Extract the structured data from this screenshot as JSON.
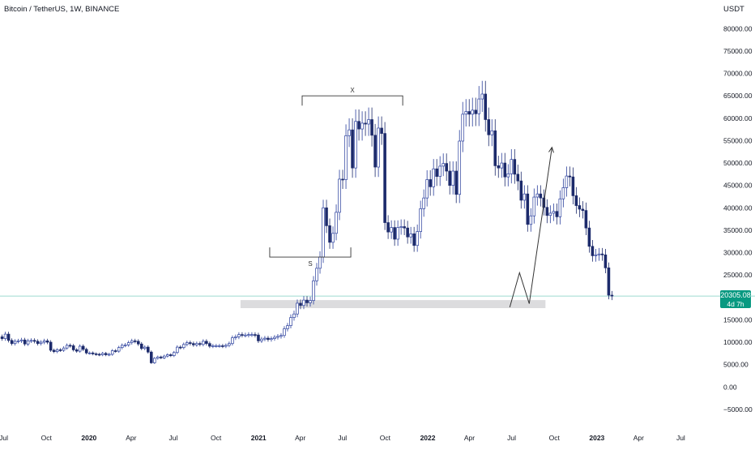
{
  "header": {
    "title": "Bitcoin / TetherUS, 1W, BINANCE",
    "unit": "USDT"
  },
  "price_tag": {
    "price": "20305.08",
    "countdown": "4d 7h"
  },
  "colors": {
    "up": "#2a3f9d",
    "down": "#1c2a6b",
    "background": "#ffffff",
    "price_line": "#7fcfc0",
    "support_zone": "#dcdcde",
    "annotation": "#333333",
    "axis_text": "#131722"
  },
  "chart_data": {
    "type": "candlestick",
    "title": "Bitcoin / TetherUS, 1W, BINANCE",
    "ylim": [
      -9000,
      83500
    ],
    "xlim": [
      "2019-06-23",
      "2023-09-17"
    ],
    "grid": false,
    "y_ticks": [
      80000,
      75000,
      70000,
      65000,
      60000,
      55000,
      50000,
      45000,
      40000,
      35000,
      30000,
      25000,
      15000,
      10000,
      5000,
      0,
      -5000
    ],
    "y_tick_labels": [
      "80000.00",
      "75000.00",
      "70000.00",
      "65000.00",
      "60000.00",
      "55000.00",
      "50000.00",
      "45000.00",
      "40000.00",
      "35000.00",
      "30000.00",
      "25000.00",
      "15000.00",
      "10000.00",
      "5000.00",
      "0.00",
      "−5000.00"
    ],
    "x_ticks": [
      {
        "date": "2019-07-01",
        "label": "Jul"
      },
      {
        "date": "2019-10-01",
        "label": "Oct"
      },
      {
        "date": "2020-01-01",
        "label": "2020"
      },
      {
        "date": "2020-04-01",
        "label": "Apr"
      },
      {
        "date": "2020-07-01",
        "label": "Jul"
      },
      {
        "date": "2020-10-01",
        "label": "Oct"
      },
      {
        "date": "2021-01-01",
        "label": "2021"
      },
      {
        "date": "2021-04-01",
        "label": "Apr"
      },
      {
        "date": "2021-07-01",
        "label": "Jul"
      },
      {
        "date": "2021-10-01",
        "label": "Oct"
      },
      {
        "date": "2022-01-01",
        "label": "2022"
      },
      {
        "date": "2022-04-01",
        "label": "Apr"
      },
      {
        "date": "2022-07-01",
        "label": "Jul"
      },
      {
        "date": "2022-10-01",
        "label": "Oct"
      },
      {
        "date": "2023-01-01",
        "label": "2023"
      },
      {
        "date": "2023-04-01",
        "label": "Apr"
      },
      {
        "date": "2023-07-01",
        "label": "Jul"
      }
    ],
    "current_price": 20305.08,
    "candle_period_days": 7,
    "candles_start": "2019-06-24",
    "closes": [
      10800,
      11800,
      10400,
      9700,
      10200,
      10300,
      10500,
      9600,
      10300,
      10400,
      10200,
      9700,
      10000,
      10300,
      10000,
      8200,
      7900,
      8300,
      8200,
      8700,
      9300,
      9200,
      8300,
      8000,
      9100,
      8400,
      7600,
      7600,
      7400,
      7300,
      7200,
      7500,
      7200,
      7300,
      8100,
      8000,
      8800,
      9300,
      9400,
      9900,
      10300,
      10200,
      9600,
      8600,
      8900,
      7800,
      5400,
      6400,
      6700,
      6500,
      6900,
      7200,
      7000,
      7700,
      8900,
      8800,
      9500,
      9900,
      9700,
      9400,
      9700,
      9500,
      10200,
      9700,
      9100,
      9200,
      9200,
      9200,
      9100,
      9300,
      9700,
      11000,
      11200,
      11700,
      11600,
      11600,
      11700,
      11700,
      11600,
      10300,
      10700,
      10900,
      10600,
      10800,
      11100,
      11300,
      11500,
      13000,
      13700,
      15500,
      16300,
      18700,
      18200,
      19400,
      18800,
      19300,
      23700,
      26500,
      29000,
      40000,
      36000,
      32300,
      34300,
      39000,
      46400,
      46300,
      56100,
      57400,
      48900,
      59300,
      57600,
      58900,
      58700,
      59700,
      56200,
      49100,
      57800,
      56600,
      36700,
      34600,
      35600,
      33000,
      35600,
      35800,
      35500,
      33500,
      34200,
      31600,
      34700,
      39800,
      42200,
      46300,
      44700,
      48700,
      47000,
      49300,
      49900,
      48200,
      45000,
      48200,
      43000,
      54900,
      60900,
      61500,
      60900,
      61800,
      61000,
      64300,
      65400,
      59700,
      56300,
      57200,
      49400,
      48900,
      50000,
      46900,
      47600,
      50800,
      47500,
      46000,
      41700,
      43100,
      36300,
      38200,
      42400,
      43100,
      42200,
      40100,
      38300,
      38800,
      39200,
      38000,
      42000,
      44500,
      47100,
      46900,
      42700,
      40500,
      39700,
      39400,
      35500,
      31400,
      29300,
      29500,
      29700,
      29500,
      26600,
      20500,
      20305
    ],
    "opens": [
      11200,
      10800,
      11800,
      10400,
      9700,
      10200,
      10300,
      10500,
      9600,
      10300,
      10400,
      10200,
      9700,
      10000,
      10300,
      10000,
      8200,
      7900,
      8300,
      8200,
      8700,
      9300,
      9200,
      8300,
      8000,
      9100,
      8400,
      7600,
      7600,
      7400,
      7300,
      7200,
      7500,
      7200,
      7300,
      8100,
      8000,
      8800,
      9300,
      9400,
      9900,
      10300,
      10200,
      9600,
      8600,
      8900,
      7800,
      5400,
      6400,
      6700,
      6500,
      6900,
      7200,
      7000,
      7700,
      8900,
      8800,
      9500,
      9900,
      9700,
      9400,
      9700,
      9500,
      10200,
      9700,
      9100,
      9200,
      9200,
      9200,
      9100,
      9300,
      9700,
      11000,
      11200,
      11700,
      11600,
      11600,
      11700,
      11700,
      11600,
      10300,
      10700,
      10900,
      10600,
      10800,
      11100,
      11300,
      11500,
      13000,
      13700,
      15500,
      16300,
      18700,
      18200,
      19400,
      18800,
      19300,
      23700,
      26500,
      29000,
      40000,
      36000,
      32300,
      34300,
      39000,
      46400,
      46300,
      56100,
      57400,
      48900,
      59300,
      57600,
      58900,
      58700,
      59700,
      56200,
      49100,
      57800,
      56600,
      36700,
      34600,
      35600,
      33000,
      35600,
      35800,
      35500,
      33500,
      34200,
      31600,
      34700,
      39800,
      42200,
      46300,
      44700,
      48700,
      47000,
      49300,
      49900,
      48200,
      45000,
      48200,
      43000,
      54900,
      60900,
      61500,
      60900,
      61800,
      61000,
      64300,
      65400,
      59700,
      56300,
      57200,
      49400,
      48900,
      50000,
      46900,
      47600,
      50800,
      47500,
      46000,
      41700,
      43100,
      36300,
      38200,
      42400,
      43100,
      42200,
      40100,
      38300,
      38800,
      39200,
      38000,
      42000,
      44500,
      47100,
      46900,
      42700,
      40500,
      39700,
      39400,
      35500,
      31400,
      29300,
      29500,
      29700,
      29500,
      26600,
      20500
    ],
    "annotations": [
      {
        "type": "bracket",
        "label": "X",
        "from_date": "2021-04-05",
        "to_date": "2021-11-08",
        "at_price": 65000
      },
      {
        "type": "bracket",
        "label": "S",
        "from_date": "2021-01-25",
        "to_date": "2021-07-19",
        "at_price": 29000
      },
      {
        "type": "zone",
        "from_date": "2020-11-23",
        "to_date": "2022-09-12",
        "from_price": 17600,
        "to_price": 19400
      },
      {
        "type": "path",
        "arrow": true,
        "points": [
          {
            "date": "2022-06-27",
            "price": 17800
          },
          {
            "date": "2022-07-18",
            "price": 25500
          },
          {
            "date": "2022-08-08",
            "price": 18600
          },
          {
            "date": "2022-09-26",
            "price": 53500
          }
        ]
      }
    ]
  }
}
